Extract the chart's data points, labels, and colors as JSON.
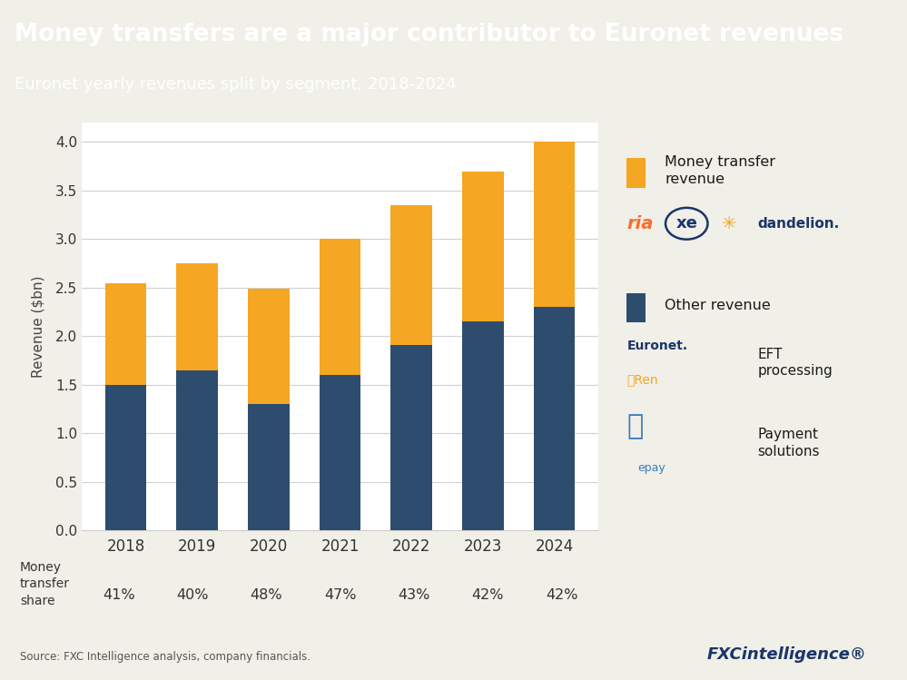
{
  "title": "Money transfers are a major contributor to Euronet revenues",
  "subtitle": "Euronet yearly revenues split by segment, 2018-2024",
  "years": [
    "2018",
    "2019",
    "2020",
    "2021",
    "2022",
    "2023",
    "2024"
  ],
  "other_revenue": [
    1.5,
    1.65,
    1.3,
    1.6,
    1.91,
    2.15,
    2.3
  ],
  "money_transfer_revenue": [
    1.04,
    1.1,
    1.19,
    1.4,
    1.44,
    1.54,
    1.7
  ],
  "money_transfer_share": [
    "41%",
    "40%",
    "48%",
    "47%",
    "43%",
    "42%",
    "42%"
  ],
  "bar_color_other": "#2e4d6e",
  "bar_color_money": "#f5a623",
  "header_bg": "#3a5778",
  "header_text_color": "#ffffff",
  "title_fontsize": 19,
  "subtitle_fontsize": 13,
  "ylabel": "Revenue ($bn)",
  "ylim": [
    0,
    4.2
  ],
  "yticks": [
    0.0,
    0.5,
    1.0,
    1.5,
    2.0,
    2.5,
    3.0,
    3.5,
    4.0
  ],
  "source_text": "Source: FXC Intelligence analysis, company financials.",
  "bg_color": "#f0efe8",
  "plot_bg_color": "#ffffff",
  "legend1_label": "Money transfer\nrevenue",
  "legend2_label": "Other revenue",
  "eft_label": "EFT\nprocessing",
  "payment_label": "Payment\nsolutions",
  "fxc_text": "FXCintelligence",
  "fxc_superscript": "®"
}
